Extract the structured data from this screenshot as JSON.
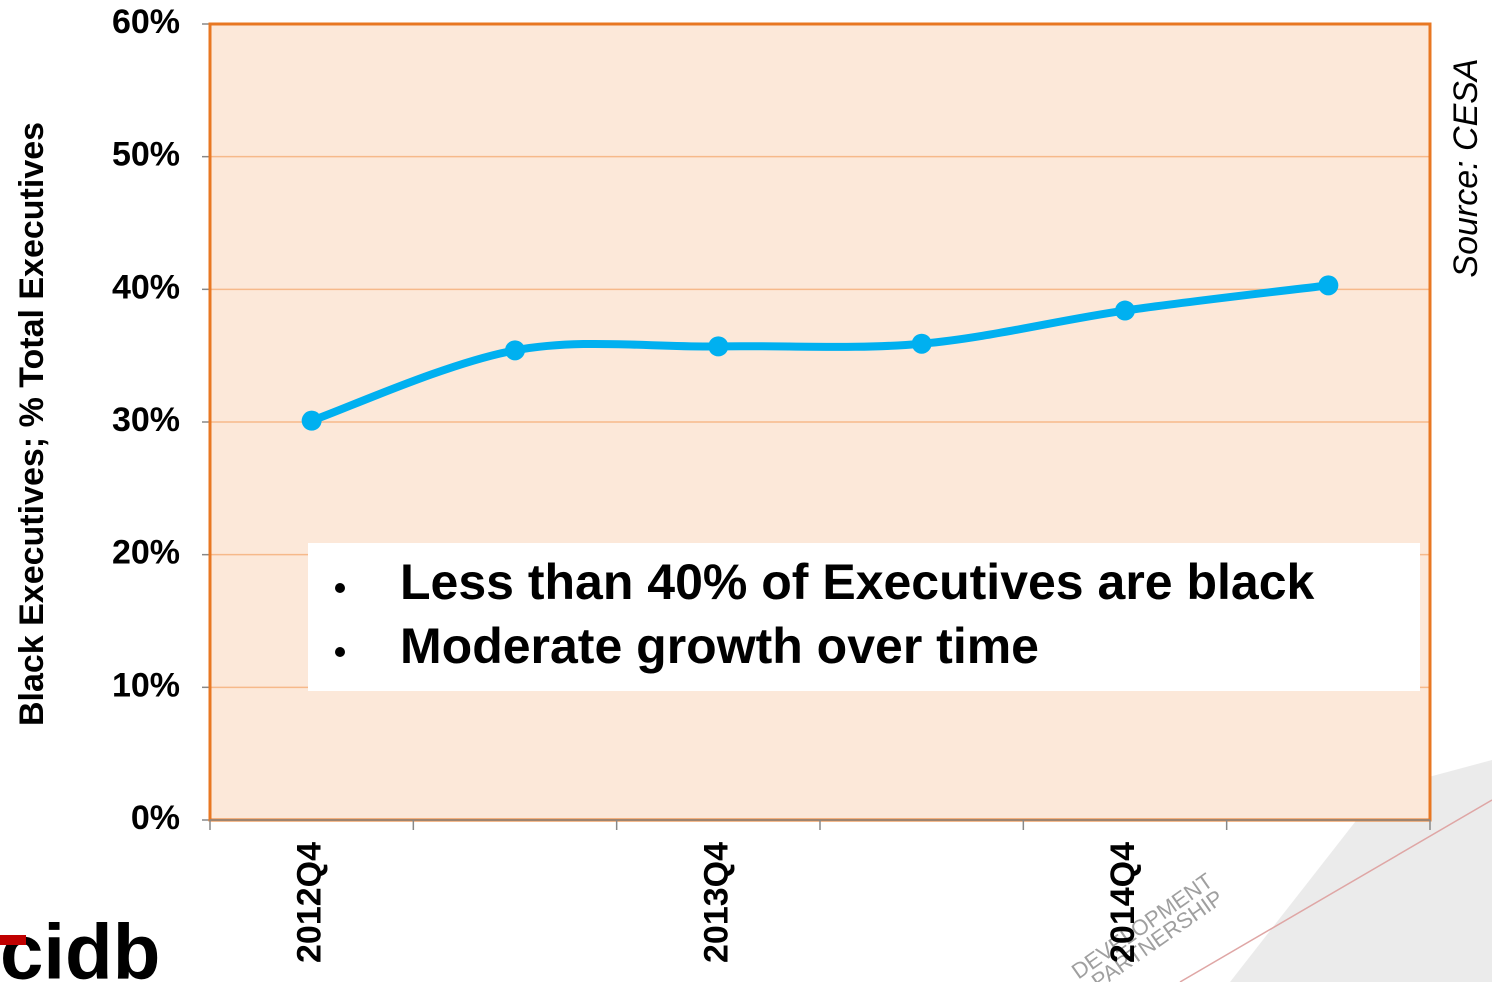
{
  "chart_data": {
    "type": "line",
    "y_axis_label": "Black Executives; % Total Executives",
    "source": "Source: CESA",
    "annotations": [
      "Less than 40% of Executives are black",
      "Moderate growth over time"
    ],
    "logo": "cidb",
    "watermark": [
      "DEVELOPMENT",
      "PARTNERSHIP"
    ],
    "categories": [
      "2012Q4",
      null,
      "2013Q4",
      null,
      "2014Q4",
      null
    ],
    "series": [
      {
        "name": "Black Executives",
        "color": "#00b0f0",
        "values": [
          30.1,
          35.4,
          35.7,
          35.9,
          38.4,
          40.3
        ]
      }
    ],
    "ylim": [
      0,
      60
    ],
    "yticks": [
      {
        "value": 0,
        "label": "0%"
      },
      {
        "value": 10,
        "label": "10%"
      },
      {
        "value": 20,
        "label": "20%"
      },
      {
        "value": 30,
        "label": "30%"
      },
      {
        "value": 40,
        "label": "40%"
      },
      {
        "value": 50,
        "label": "50%"
      },
      {
        "value": 60,
        "label": "60%"
      }
    ],
    "grid": true,
    "plot_background": "#fce8d9",
    "frame_color": "#e87722",
    "grid_color": "#f6b98a"
  }
}
